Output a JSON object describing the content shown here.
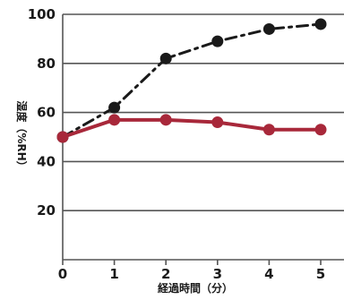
{
  "chart_data": {
    "type": "line",
    "xlabel": "経過時間（分）",
    "ylabel": "湿度（%RH）",
    "x": [
      0,
      1,
      2,
      3,
      4,
      5
    ],
    "xlim": [
      0,
      5
    ],
    "ylim": [
      0,
      100
    ],
    "xticks": [
      "0",
      "1",
      "2",
      "3",
      "4",
      "5"
    ],
    "yticks": [
      "20",
      "40",
      "60",
      "80",
      "100"
    ],
    "grid": "horizontal",
    "series": [
      {
        "style": "dash-dot",
        "color": "#1a1a1a",
        "values": [
          50,
          62,
          82,
          89,
          94,
          96
        ]
      },
      {
        "style": "solid",
        "color": "#a8283a",
        "values": [
          50,
          57,
          57,
          56,
          53,
          53
        ]
      }
    ]
  }
}
